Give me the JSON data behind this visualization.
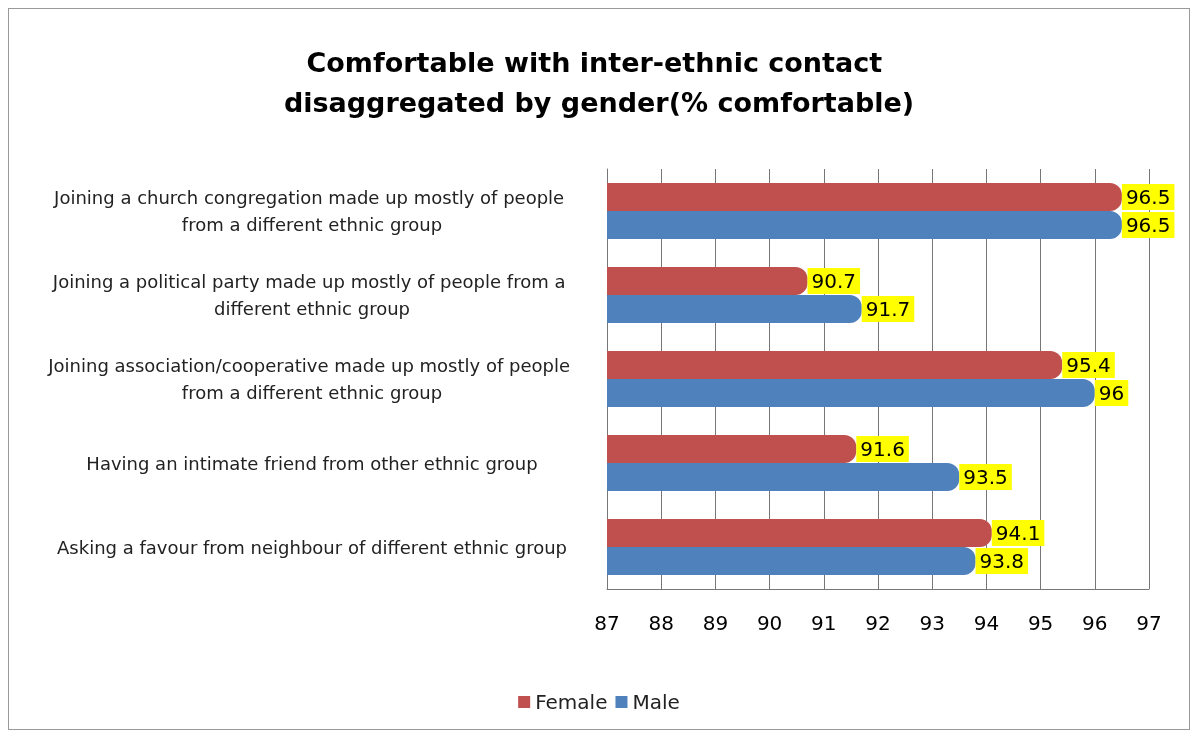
{
  "chart_data": {
    "type": "bar",
    "orientation": "horizontal",
    "title": "Comfortable with inter-ethnic contact disaggregated by gender(% comfortable)",
    "categories": [
      "Joining a church congregation made up mostly of people from a different ethnic group",
      "Joining a political party made up mostly of people from a different ethnic group",
      "Joining association/cooperative made up mostly of people from a different ethnic group",
      "Having an intimate friend from other ethnic group",
      "Asking a favour from neighbour of different ethnic group"
    ],
    "series": [
      {
        "name": "Female",
        "color": "#c0504d",
        "values": [
          96.5,
          90.7,
          95.4,
          91.6,
          94.1
        ]
      },
      {
        "name": "Male",
        "color": "#4f81bd",
        "values": [
          96.5,
          91.7,
          96,
          93.5,
          93.8
        ]
      }
    ],
    "xlim": [
      87,
      97
    ],
    "xticks": [
      87,
      88,
      89,
      90,
      91,
      92,
      93,
      94,
      95,
      96,
      97
    ],
    "grid": "x",
    "legend": "bottom",
    "data_labels": true
  }
}
